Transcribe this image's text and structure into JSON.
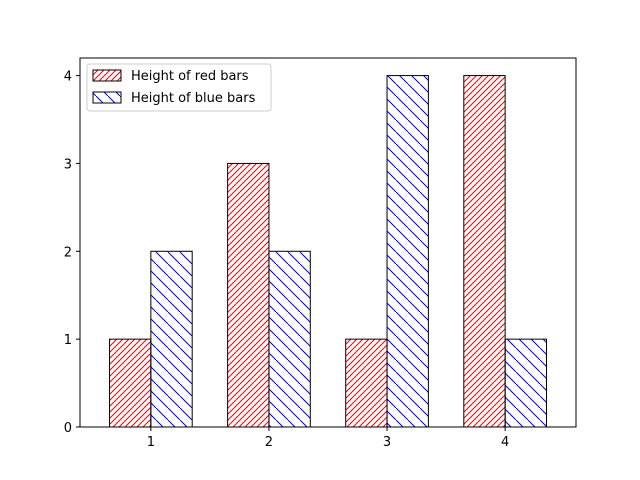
{
  "chart_data": {
    "type": "bar",
    "title": "",
    "xlabel": "",
    "ylabel": "",
    "categories": [
      "1",
      "2",
      "3",
      "4"
    ],
    "x": [
      1,
      2,
      3,
      4
    ],
    "xlim": [
      0.4,
      4.6
    ],
    "ylim": [
      0,
      4.2
    ],
    "xticks": [
      "1",
      "2",
      "3",
      "4"
    ],
    "yticks": [
      "0",
      "1",
      "2",
      "3",
      "4"
    ],
    "grid": false,
    "legend_position": "upper left",
    "series": [
      {
        "name": "Height of red bars",
        "values": [
          1,
          3,
          1,
          4
        ],
        "color": "#ff0000",
        "hatch": "////"
      },
      {
        "name": "Height of blue bars",
        "values": [
          2,
          2,
          4,
          1
        ],
        "color": "#0000ff",
        "hatch": "\\\\"
      }
    ]
  }
}
